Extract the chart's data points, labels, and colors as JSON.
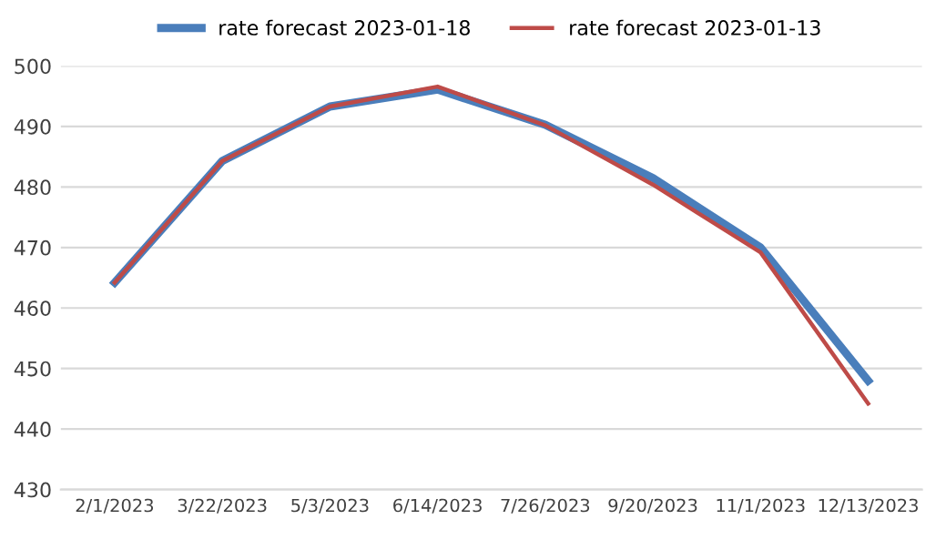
{
  "chart_data": {
    "type": "line",
    "categories": [
      "2/1/2023",
      "3/22/2023",
      "5/3/2023",
      "6/14/2023",
      "7/26/2023",
      "9/20/2023",
      "11/1/2023",
      "12/13/2023"
    ],
    "series": [
      {
        "name": "rate forecast 2023-01-18",
        "color": "#4a7ebb",
        "values": [
          464.2,
          484.3,
          493.3,
          496.1,
          490.3,
          481.5,
          470.0,
          448.0
        ]
      },
      {
        "name": "rate forecast 2023-01-13",
        "color": "#be4b48",
        "values": [
          464.2,
          484.3,
          493.3,
          496.6,
          490.2,
          480.4,
          469.2,
          444.2
        ]
      }
    ],
    "ylim": [
      430,
      500
    ],
    "yticks": [
      430,
      440,
      450,
      460,
      470,
      480,
      490,
      500
    ],
    "grid": "y",
    "legend": "top",
    "marker": "none",
    "line_style": "solid"
  }
}
